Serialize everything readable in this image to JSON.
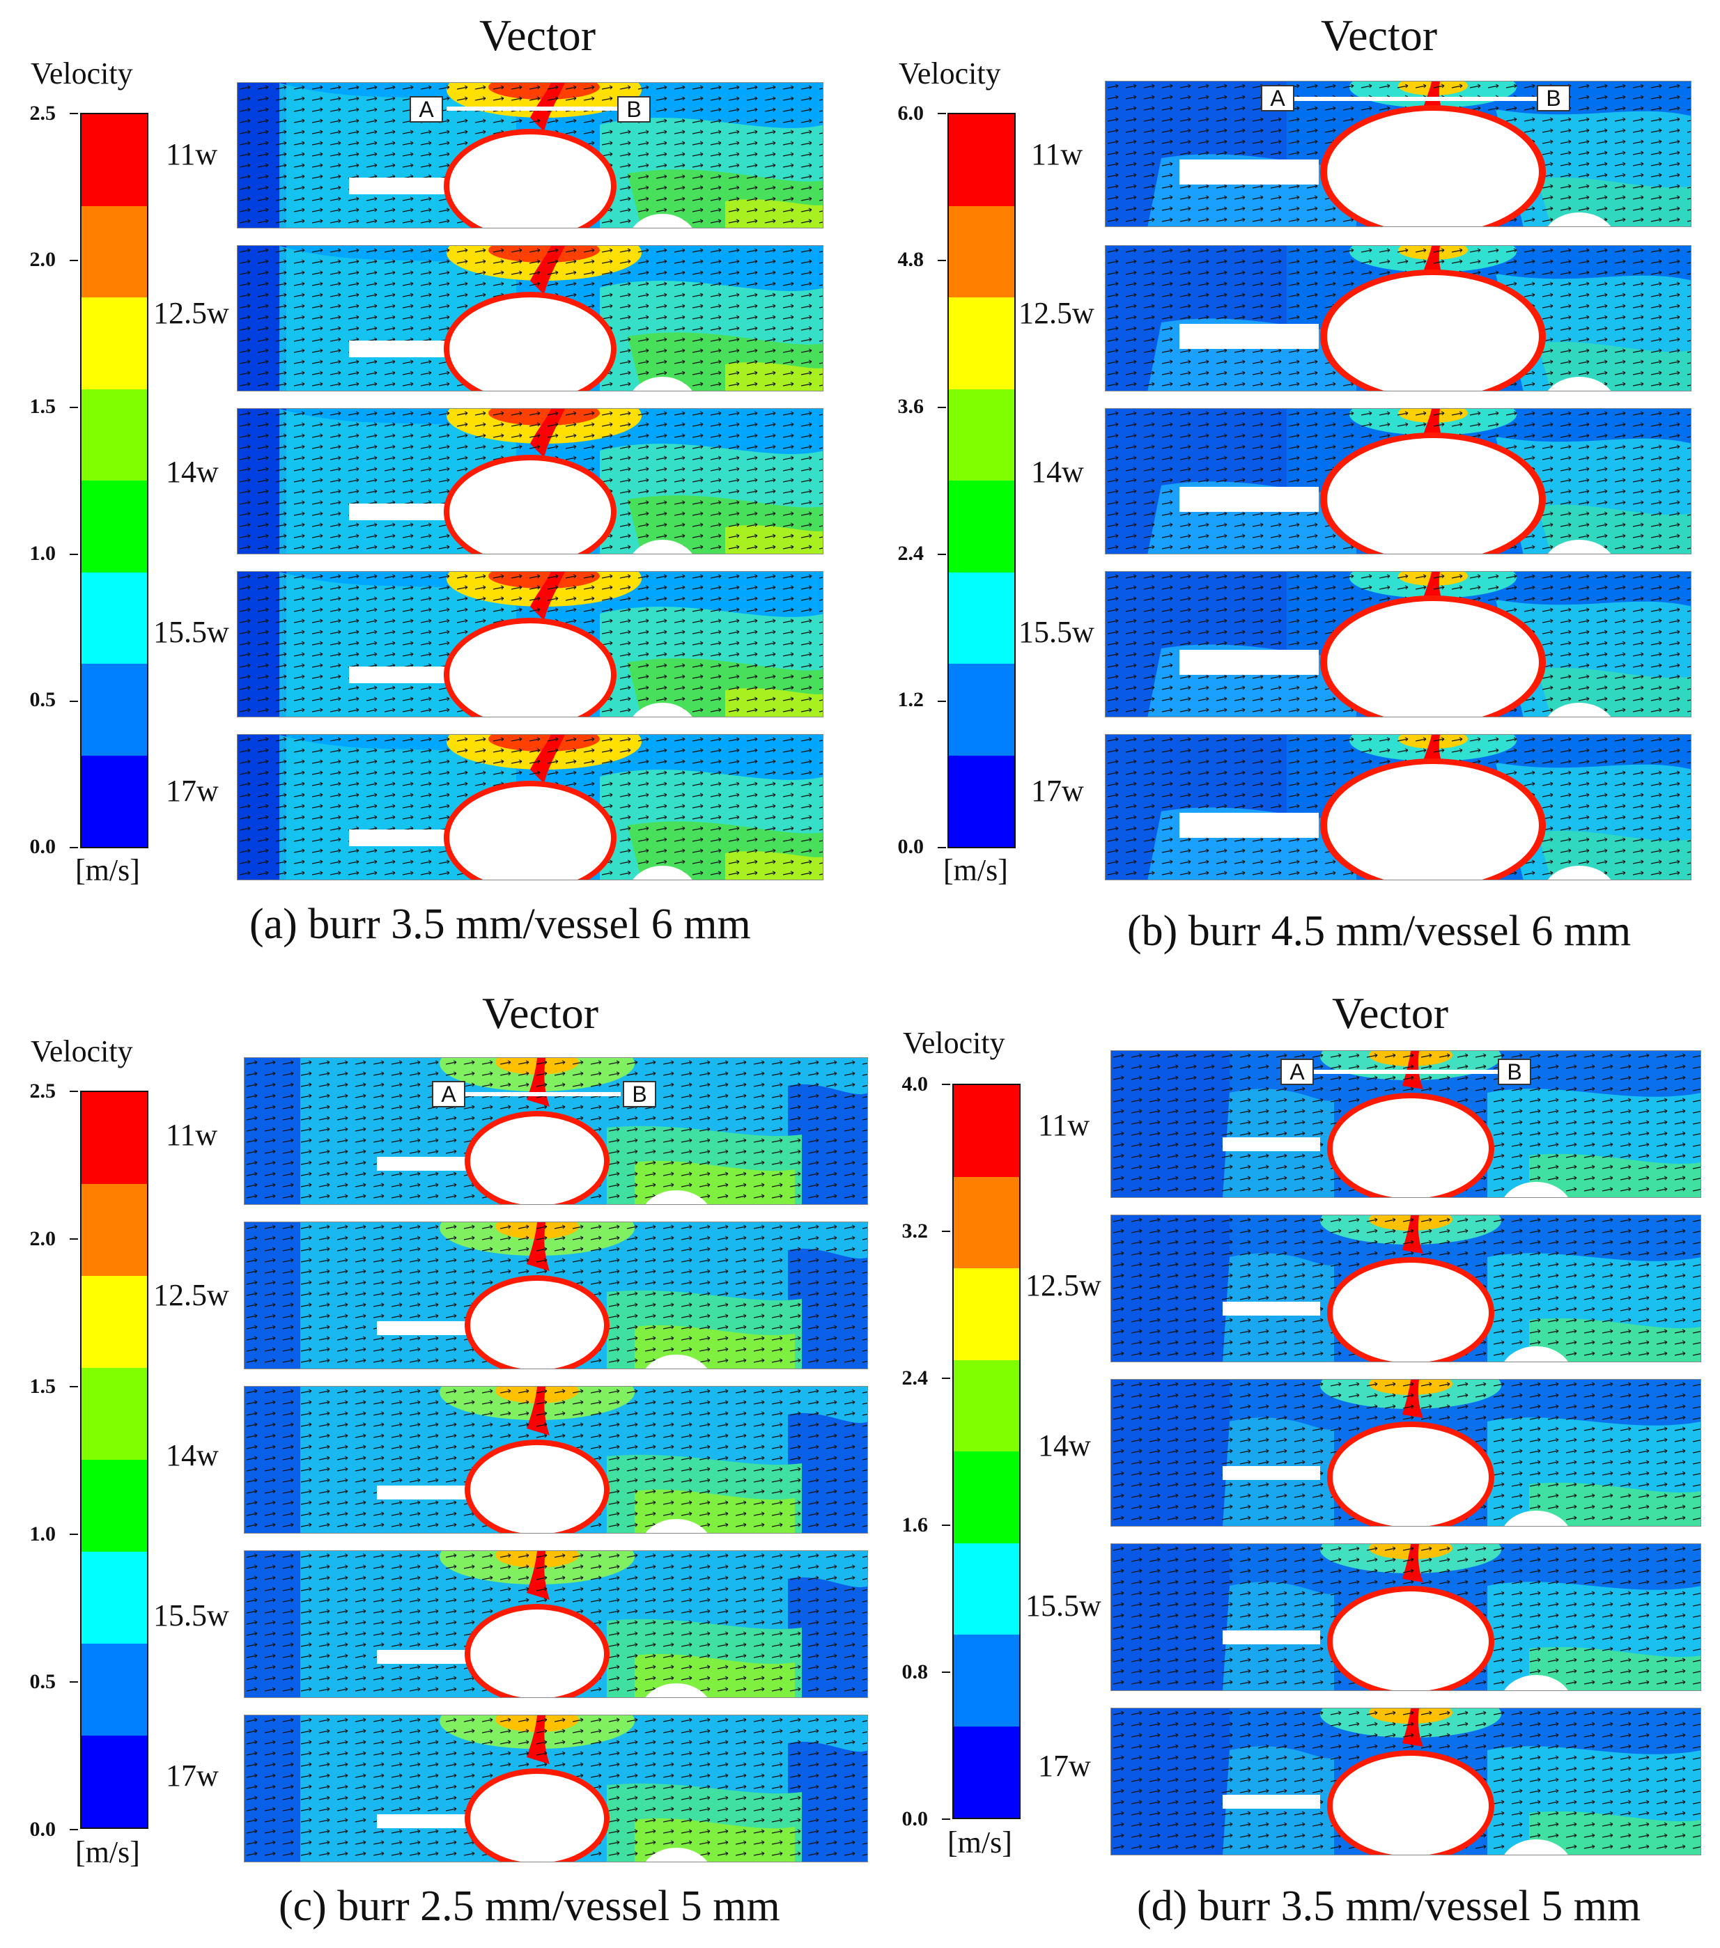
{
  "vector_title": "Vector",
  "velocity_label": "Velocity",
  "unit_label": "[m/s]",
  "weeks": [
    "11w",
    "12.5w",
    "14w",
    "15.5w",
    "17w"
  ],
  "marker_a": "A",
  "marker_b": "B",
  "colorbar_colors": [
    "#ff0000",
    "#ff8000",
    "#ffff00",
    "#80ff00",
    "#00ff00",
    "#00ffff",
    "#0080ff",
    "#0000ff"
  ],
  "subfigures": [
    {
      "caption": "(a) burr 3.5 mm/vessel 6 mm",
      "ticks": [
        "2.5",
        "2.0",
        "1.5",
        "1.0",
        "0.5",
        "0.0"
      ]
    },
    {
      "caption": "(b) burr 4.5 mm/vessel 6 mm",
      "ticks": [
        "6.0",
        "4.8",
        "3.6",
        "2.4",
        "1.2",
        "0.0"
      ]
    },
    {
      "caption": "(c) burr 2.5 mm/vessel 5 mm",
      "ticks": [
        "2.5",
        "2.0",
        "1.5",
        "1.0",
        "0.5",
        "0.0"
      ]
    },
    {
      "caption": "(d) burr 3.5 mm/vessel 5 mm",
      "ticks": [
        "4.0",
        "3.2",
        "2.4",
        "1.6",
        "0.8",
        "0.0"
      ]
    }
  ]
}
